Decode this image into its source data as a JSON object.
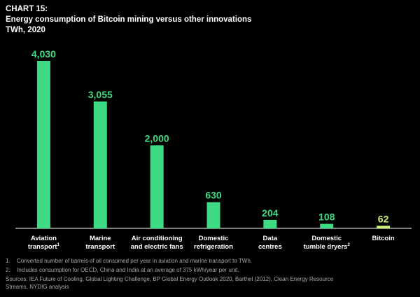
{
  "header": {
    "chart_number": "CHART 15:",
    "title": "Energy consumption of Bitcoin mining versus other innovations",
    "unit": "TWh, 2020"
  },
  "colors": {
    "bar": "#3ddc84",
    "bitcoin_bar": "#cdf27a",
    "background": "#000000",
    "text": "#ffffff",
    "muted": "#a8a8a8"
  },
  "chart_data": {
    "type": "bar",
    "title": "Energy consumption of Bitcoin mining versus other innovations",
    "subtitle": "TWh, 2020",
    "categories": [
      {
        "lines": [
          "Aviation",
          "transport"
        ],
        "sup": "1"
      },
      {
        "lines": [
          "Marine",
          "transport"
        ],
        "sup": ""
      },
      {
        "lines": [
          "Air conditioning",
          "and electric fans"
        ],
        "sup": ""
      },
      {
        "lines": [
          "Domestic",
          "refrigeration"
        ],
        "sup": ""
      },
      {
        "lines": [
          "Data",
          "centres"
        ],
        "sup": ""
      },
      {
        "lines": [
          "Domestic",
          "tumble dryers"
        ],
        "sup": "2"
      },
      {
        "lines": [
          "Bitcoin"
        ],
        "sup": ""
      }
    ],
    "values": [
      4030,
      3055,
      2000,
      630,
      204,
      108,
      62
    ],
    "value_labels": [
      "4,030",
      "3,055",
      "2,000",
      "630",
      "204",
      "108",
      "62"
    ],
    "highlight_index": 6,
    "ylim": [
      0,
      4030
    ],
    "grid": false,
    "legend": "none"
  },
  "footnotes": [
    {
      "num": "1.",
      "text": "Converted number of barrels of oil consumed per year in aviation and marine transport to TWh."
    },
    {
      "num": "2.",
      "text": "Includes consumption for OECD, China and India at an average of 375 kWh/year per unit."
    }
  ],
  "sources": [
    "Sources: IEA Future of Cooling, Global Lighting Challenge, BP Global Energy Outlook 2020, Barthel (2012), Clean Energy Resource",
    "Streams, NYDIG analysis"
  ]
}
